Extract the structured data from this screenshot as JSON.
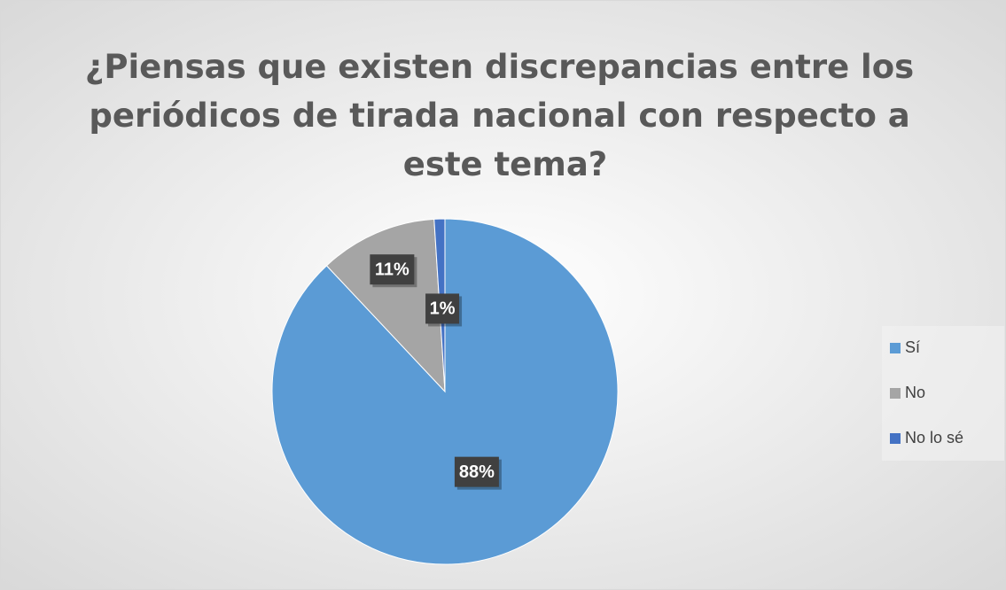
{
  "chart_data": {
    "type": "pie",
    "title": "¿Piensas que existen discrepancias entre los periódicos de tirada nacional con respecto a este tema?",
    "categories": [
      "Sí",
      "No",
      "No lo sé"
    ],
    "values": [
      88,
      11,
      1
    ],
    "value_labels": [
      "88%",
      "11%",
      "1%"
    ],
    "colors": [
      "#5b9bd5",
      "#a5a5a5",
      "#4472c4"
    ],
    "legend": "right"
  }
}
